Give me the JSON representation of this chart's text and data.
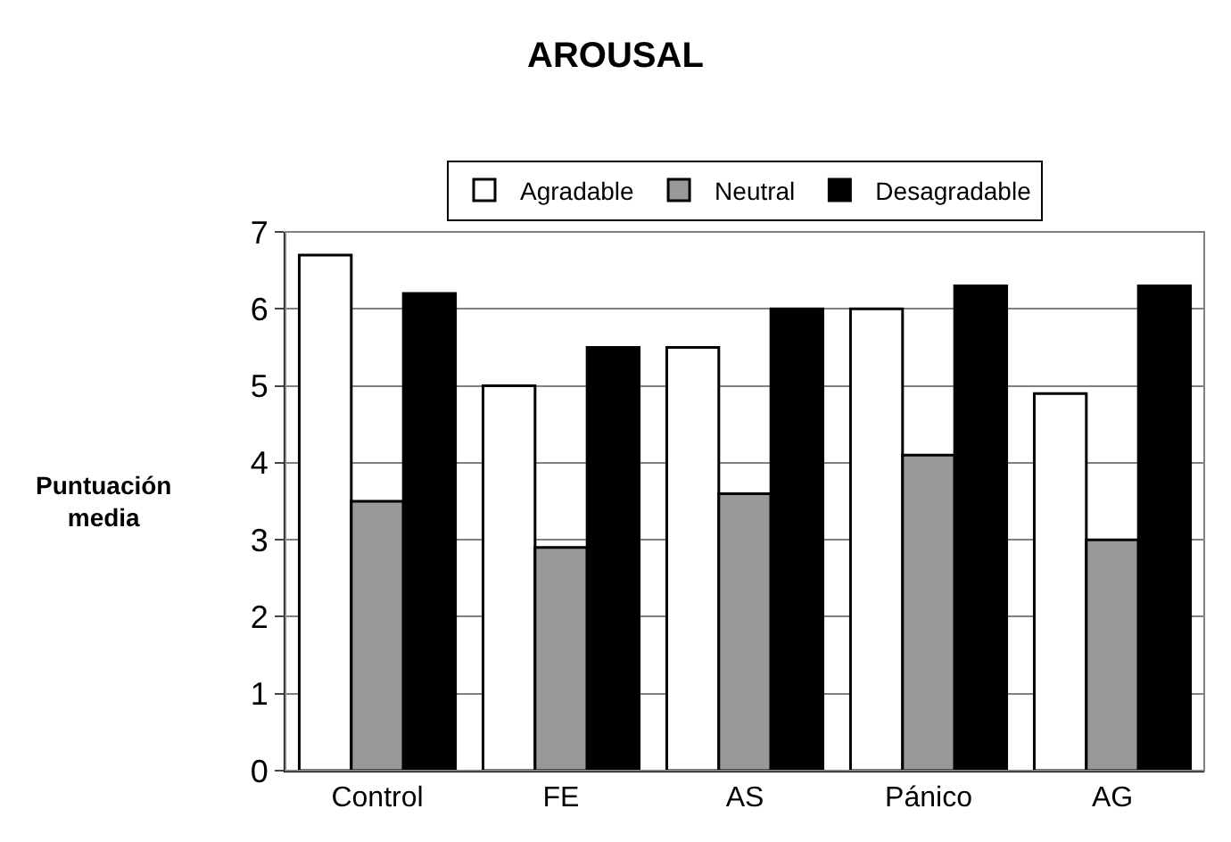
{
  "chart_data": {
    "type": "bar",
    "title": "AROUSAL",
    "ylabel": "Puntuación media",
    "categories": [
      "Control",
      "FE",
      "AS",
      "Pánico",
      "AG"
    ],
    "series": [
      {
        "name": "Agradable",
        "color": "#ffffff",
        "values": [
          6.7,
          5.0,
          5.5,
          6.0,
          4.9
        ]
      },
      {
        "name": "Neutral",
        "color": "#999999",
        "values": [
          3.5,
          2.9,
          3.6,
          4.1,
          3.0
        ]
      },
      {
        "name": "Desagradable",
        "color": "#000000",
        "values": [
          6.2,
          5.5,
          6.0,
          6.3,
          6.3
        ]
      }
    ],
    "ylim": [
      0,
      7
    ],
    "yticks": [
      0,
      1,
      2,
      3,
      4,
      5,
      6,
      7
    ],
    "grid": "y",
    "legend": "top"
  }
}
